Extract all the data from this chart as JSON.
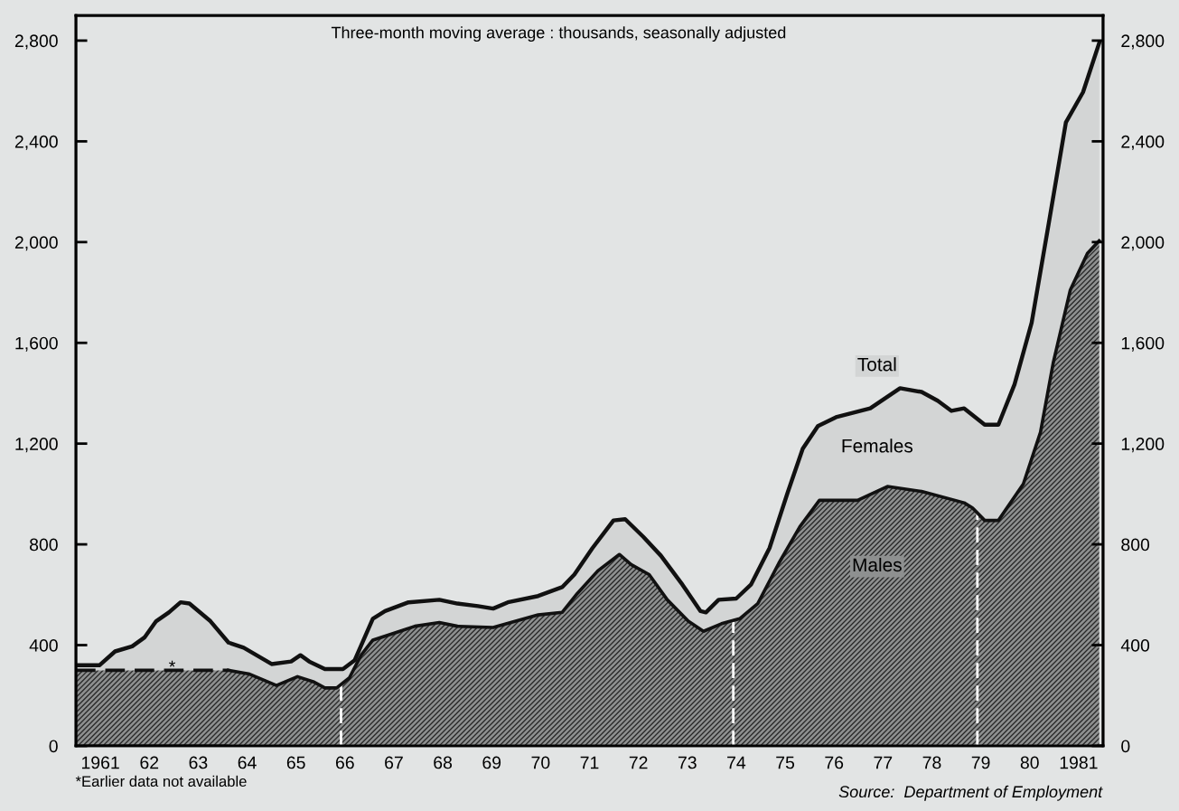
{
  "chart_data": {
    "type": "area",
    "subtitle": "Three-month moving average : thousands, seasonally adjusted",
    "annotations": [
      "*Earlier data not available",
      "Source:  Department of Employment",
      "Females",
      "*"
    ],
    "series": [
      {
        "name": "Total",
        "color": "#d3d5d5",
        "line_style": "solid",
        "x": [
          1960.5,
          1960.98,
          1961.3,
          1961.65,
          1961.9,
          1962.14,
          1962.4,
          1962.64,
          1962.82,
          1963.25,
          1963.62,
          1963.93,
          1964.5,
          1964.9,
          1965.09,
          1965.27,
          1965.59,
          1965.96,
          1966.2,
          1966.38,
          1966.57,
          1966.82,
          1967.3,
          1967.93,
          1968.3,
          1968.72,
          1969.03,
          1969.33,
          1969.95,
          1970.44,
          1970.69,
          1971.06,
          1971.49,
          1971.73,
          1972.1,
          1972.46,
          1972.9,
          1973.27,
          1973.38,
          1973.64,
          1974.0,
          1974.3,
          1974.68,
          1975.05,
          1975.36,
          1975.67,
          1976.04,
          1976.74,
          1977.35,
          1977.79,
          1978.12,
          1978.4,
          1978.66,
          1979.08,
          1979.36,
          1979.69,
          1980.04,
          1980.39,
          1980.74,
          1981.09,
          1981.42
        ],
        "values": [
          320,
          320,
          375,
          395,
          430,
          495,
          530,
          570,
          565,
          495,
          410,
          390,
          325,
          335,
          360,
          335,
          305,
          305,
          340,
          420,
          505,
          535,
          570,
          580,
          565,
          555,
          545,
          570,
          595,
          630,
          680,
          785,
          895,
          900,
          830,
          755,
          640,
          535,
          530,
          580,
          585,
          640,
          785,
          1005,
          1180,
          1270,
          1305,
          1340,
          1420,
          1405,
          1370,
          1330,
          1340,
          1275,
          1275,
          1435,
          1680,
          2075,
          2475,
          2595,
          2790
        ]
      },
      {
        "color": "#8e9090",
        "line_style": "dashed",
        "x": [
          1960.5,
          1961.5,
          1962.5,
          1963.62
        ],
        "values": [
          300,
          300,
          300,
          300
        ]
      },
      {
        "name": "Males",
        "color": "#8e9090",
        "line_style": "solid",
        "x": [
          1963.62,
          1964.05,
          1964.6,
          1965.03,
          1965.35,
          1965.59,
          1965.83,
          1966.09,
          1966.33,
          1966.57,
          1967.12,
          1967.43,
          1967.93,
          1968.3,
          1969.03,
          1969.95,
          1970.44,
          1970.75,
          1971.17,
          1971.61,
          1971.85,
          1972.22,
          1972.59,
          1973.02,
          1973.33,
          1973.7,
          1974.07,
          1974.44,
          1974.87,
          1975.3,
          1975.7,
          1976.48,
          1977.09,
          1977.79,
          1978.66,
          1978.83,
          1979.08,
          1979.36,
          1979.87,
          1980.22,
          1980.48,
          1980.83,
          1981.18,
          1981.42
        ],
        "values": [
          300,
          285,
          240,
          275,
          255,
          230,
          230,
          270,
          360,
          420,
          455,
          475,
          490,
          475,
          470,
          520,
          530,
          605,
          695,
          760,
          720,
          680,
          580,
          495,
          455,
          485,
          505,
          565,
          725,
          870,
          975,
          975,
          1030,
          1010,
          965,
          945,
          895,
          895,
          1040,
          1245,
          1520,
          1810,
          1955,
          2005
        ]
      }
    ],
    "ref_lines": [
      {
        "axis": "x",
        "value": 1965.92,
        "color": "#ffffff",
        "line_style": "dashed"
      },
      {
        "axis": "x",
        "value": 1973.94,
        "color": "#ffffff",
        "line_style": "dashed"
      },
      {
        "axis": "x",
        "value": 1978.93,
        "color": "#ffffff",
        "line_style": "dashed"
      }
    ],
    "xlim": [
      1960.5,
      1981.5
    ],
    "xticks": [
      {
        "value": 1961,
        "label": "1961"
      },
      {
        "value": 1962,
        "label": "62"
      },
      {
        "value": 1963,
        "label": "63"
      },
      {
        "value": 1964,
        "label": "64"
      },
      {
        "value": 1965,
        "label": "65"
      },
      {
        "value": 1966,
        "label": "66"
      },
      {
        "value": 1967,
        "label": "67"
      },
      {
        "value": 1968,
        "label": "68"
      },
      {
        "value": 1969,
        "label": "69"
      },
      {
        "value": 1970,
        "label": "70"
      },
      {
        "value": 1971,
        "label": "71"
      },
      {
        "value": 1972,
        "label": "72"
      },
      {
        "value": 1973,
        "label": "73"
      },
      {
        "value": 1974,
        "label": "74"
      },
      {
        "value": 1975,
        "label": "75"
      },
      {
        "value": 1976,
        "label": "76"
      },
      {
        "value": 1977,
        "label": "77"
      },
      {
        "value": 1978,
        "label": "78"
      },
      {
        "value": 1979,
        "label": "79"
      },
      {
        "value": 1980,
        "label": "80"
      },
      1981,
      {
        "value": 1961.5,
        "label": null
      },
      {
        "value": 1962.5,
        "label": null
      },
      {
        "value": 1963.5,
        "label": null
      },
      {
        "value": 1964.5,
        "label": null
      },
      {
        "value": 1965.5,
        "label": null
      },
      {
        "value": 1966.5,
        "label": null
      },
      {
        "value": 1967.5,
        "label": null
      },
      {
        "value": 1968.5,
        "label": null
      },
      {
        "value": 1969.5,
        "label": null
      },
      {
        "value": 1970.5,
        "label": null
      },
      {
        "value": 1971.5,
        "label": null
      },
      {
        "value": 1972.5,
        "label": null
      },
      {
        "value": 1973.5,
        "label": null
      },
      {
        "value": 1974.5,
        "label": null
      },
      {
        "value": 1975.5,
        "label": null
      },
      {
        "value": 1976.5,
        "label": null
      },
      {
        "value": 1977.5,
        "label": null
      },
      {
        "value": 1978.5,
        "label": null
      },
      {
        "value": 1979.5,
        "label": null
      },
      {
        "value": 1980.5,
        "label": null
      }
    ],
    "ylim": [
      0,
      2900
    ],
    "yticks": [
      0,
      400,
      800,
      {
        "value": 1200,
        "label": "1,200"
      },
      {
        "value": 1600,
        "label": "1,600"
      },
      {
        "value": 2000,
        "label": "2,000"
      },
      {
        "value": 2400,
        "label": "2,400"
      },
      {
        "value": 2800,
        "label": "2,800"
      }
    ],
    "y2lim": [
      0,
      2900
    ],
    "y2ticks": [
      0,
      400,
      800,
      {
        "value": 1200,
        "label": "1,200"
      },
      {
        "value": 1600,
        "label": "1,600"
      },
      {
        "value": 2000,
        "label": "2,000"
      },
      {
        "value": 2400,
        "label": "2,400"
      },
      {
        "value": 2800,
        "label": "2,800"
      }
    ],
    "grid": false,
    "legend": false,
    "marker": "none"
  }
}
